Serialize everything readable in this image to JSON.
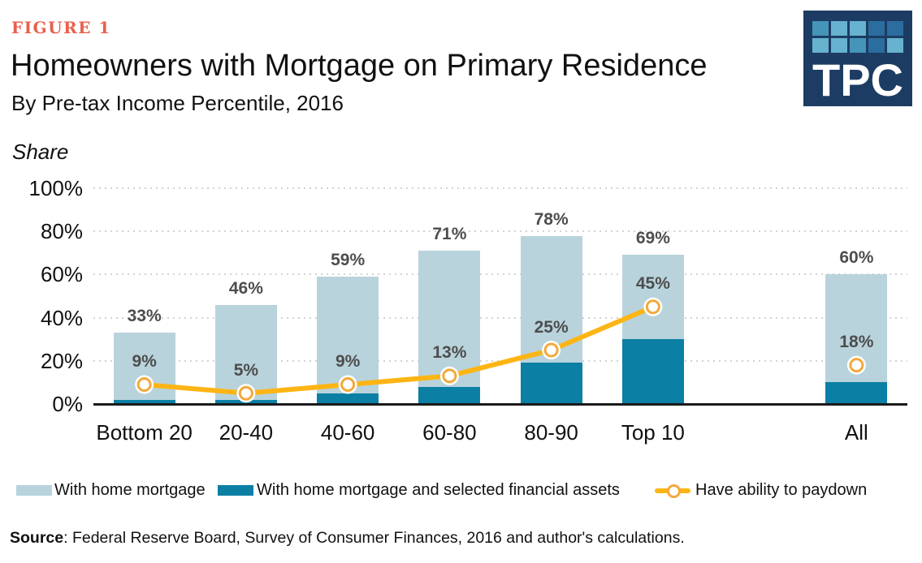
{
  "figure_label": "FIGURE 1",
  "title": "Homeowners with Mortgage on Primary Residence",
  "subtitle": "By Pre-tax Income Percentile, 2016",
  "axis_unit_label": "Share",
  "logo": {
    "text": "TPC"
  },
  "chart_data": {
    "type": "bar",
    "categories": [
      "Bottom 20",
      "20-40",
      "40-60",
      "60-80",
      "80-90",
      "Top 10",
      "All"
    ],
    "series": [
      {
        "name": "With home mortgage",
        "type": "bar",
        "color": "#B8D3DC",
        "values": [
          33,
          46,
          59,
          71,
          78,
          69,
          60
        ],
        "labels": [
          "33%",
          "46%",
          "59%",
          "71%",
          "78%",
          "69%",
          "60%"
        ]
      },
      {
        "name": "With home mortgage and selected financial assets",
        "type": "bar",
        "color": "#0B7FA4",
        "values": [
          2,
          2,
          5,
          8,
          19,
          30,
          10
        ],
        "labels": []
      },
      {
        "name": "Have ability to paydown",
        "type": "line",
        "color": "#FDB515",
        "marker_ring_color": "#F3A93C",
        "values": [
          9,
          5,
          9,
          13,
          25,
          45,
          18
        ],
        "labels": [
          "9%",
          "5%",
          "9%",
          "13%",
          "25%",
          "45%",
          "18%"
        ],
        "isolated_points": [
          "All"
        ]
      }
    ],
    "title": "Homeowners with Mortgage on Primary Residence",
    "subtitle": "By Pre-tax Income Percentile, 2016",
    "xlabel": "",
    "ylabel": "Share",
    "ylim": [
      0,
      100
    ],
    "yticks": [
      "0%",
      "20%",
      "40%",
      "60%",
      "80%",
      "100%"
    ],
    "grid": "horizontal-dotted",
    "legend_position": "bottom",
    "note": "Bars for income percentiles with a gap before the All bar; yellow line connects Bottom 20 through Top 10, All point is isolated"
  },
  "legend": {
    "items": [
      {
        "label": "With home mortgage",
        "swatch": "light-blue-rect"
      },
      {
        "label": "With home mortgage and selected financial assets",
        "swatch": "teal-rect"
      },
      {
        "label": "Have ability to paydown",
        "swatch": "yellow-line-with-circle"
      }
    ]
  },
  "source": {
    "label": "Source",
    "text": ": Federal Reserve Board, Survey of Consumer Finances, 2016 and author's calculations."
  },
  "colors": {
    "light_blue": "#B8D3DC",
    "teal": "#0B7FA4",
    "yellow": "#FDB515",
    "marker_ring": "#F3A93C",
    "figure_label": "#E9604C",
    "value_label_gray": "#4D4D4D",
    "gridline": "#D2D2D2",
    "axis": "#1A1A1A",
    "logo_navy": "#1D3C63",
    "logo_square_light": "#66B2CF",
    "logo_square_mid": "#4595B9",
    "logo_square_dark": "#2B6D9E"
  }
}
